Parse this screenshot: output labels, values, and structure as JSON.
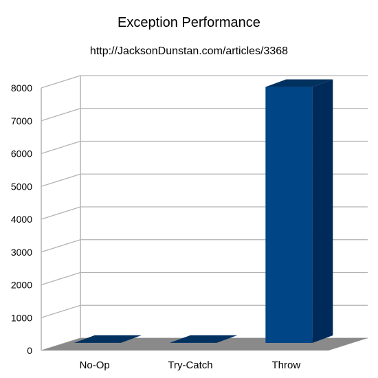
{
  "chart_data": {
    "type": "bar",
    "title": "Exception Performance",
    "subtitle": "http://JacksonDunstan.com/articles/3368",
    "categories": [
      "No-Op",
      "Try-Catch",
      "Throw"
    ],
    "values": [
      2,
      3,
      7800
    ],
    "xlabel": "",
    "ylabel": "",
    "ylim": [
      0,
      8000
    ],
    "yticks": [
      0,
      1000,
      2000,
      3000,
      4000,
      5000,
      6000,
      7000,
      8000
    ],
    "grid": true,
    "three_d": true,
    "legend": "none",
    "bar_color": "#004586",
    "floor_color": "#8a8a8a",
    "grid_color": "#b3b3b3"
  }
}
